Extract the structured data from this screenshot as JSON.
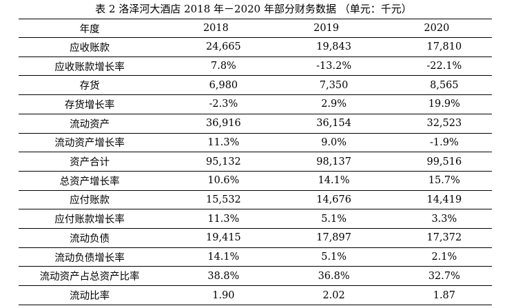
{
  "caption": "表 2   洛泽河大酒店 2018 年－2020 年部分财务数据  （单元：千元）",
  "table": {
    "header": [
      "年度",
      "2018",
      "2019",
      "2020"
    ],
    "rows": [
      {
        "label": "应收账款",
        "values": [
          "24,665",
          "19,843",
          "17,810"
        ]
      },
      {
        "label": "应收账款增长率",
        "values": [
          "7.8%",
          "-13.2%",
          "-22.1%"
        ]
      },
      {
        "label": "存货",
        "values": [
          "6,980",
          "7,350",
          "8,565"
        ]
      },
      {
        "label": "存货增长率",
        "values": [
          "-2.3%",
          "2.9%",
          "19.9%"
        ]
      },
      {
        "label": "流动资产",
        "values": [
          "36,916",
          "36,154",
          "32,523"
        ]
      },
      {
        "label": "流动资产增长率",
        "values": [
          "11.3%",
          "9.0%",
          "-1.9%"
        ]
      },
      {
        "label": "资产合计",
        "values": [
          "95,132",
          "98,137",
          "99,516"
        ]
      },
      {
        "label": "总资产增长率",
        "values": [
          "10.6%",
          "14.1%",
          "15.7%"
        ]
      },
      {
        "label": "应付账款",
        "values": [
          "15,532",
          "14,676",
          "14,419"
        ]
      },
      {
        "label": "应付账款增长率",
        "values": [
          "11.3%",
          "5.1%",
          "3.3%"
        ]
      },
      {
        "label": "流动负债",
        "values": [
          "19,415",
          "17,897",
          "17,372"
        ]
      },
      {
        "label": "流动负债增长率",
        "values": [
          "14.1%",
          "5.1%",
          "2.1%"
        ]
      },
      {
        "label": "流动资产占总资产比率",
        "values": [
          "38.8%",
          "36.8%",
          "32.7%"
        ]
      },
      {
        "label": "流动比率",
        "values": [
          "1.90",
          "2.02",
          "1.87"
        ]
      }
    ]
  }
}
